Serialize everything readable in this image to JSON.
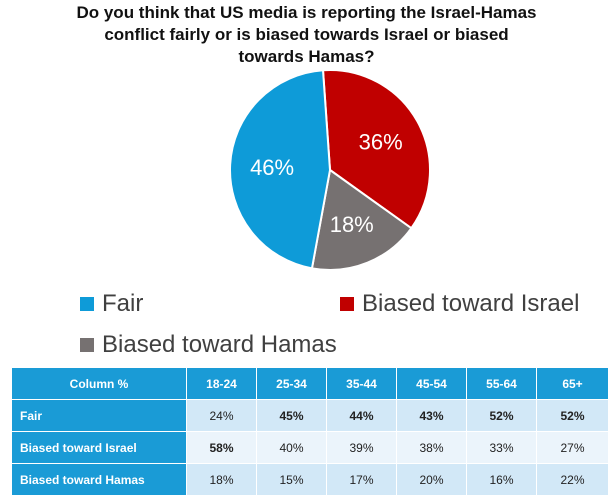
{
  "chart_data": {
    "type": "pie",
    "title_lines": [
      "Do you think that US media is reporting the Israel-Hamas",
      "conflict fairly or is biased towards Israel or biased",
      "towards Hamas?"
    ],
    "slices": [
      {
        "label": "Fair",
        "value": 46,
        "display": "46%",
        "color": "#0e9bd8"
      },
      {
        "label": "Biased toward Israel",
        "value": 36,
        "display": "36%",
        "color": "#c00000"
      },
      {
        "label": "Biased toward Hamas",
        "value": 18,
        "display": "18%",
        "color": "#767171"
      }
    ]
  },
  "table": {
    "header": [
      "Column %",
      "18-24",
      "25-34",
      "35-44",
      "45-54",
      "55-64",
      "65+"
    ],
    "rows": [
      {
        "label": "Fair",
        "values": [
          "24%",
          "45%",
          "44%",
          "43%",
          "52%",
          "52%"
        ],
        "bold": [
          false,
          true,
          true,
          true,
          true,
          true
        ]
      },
      {
        "label": "Biased toward Israel",
        "values": [
          "58%",
          "40%",
          "39%",
          "38%",
          "33%",
          "27%"
        ],
        "bold": [
          true,
          false,
          false,
          false,
          false,
          false
        ]
      },
      {
        "label": "Biased toward Hamas",
        "values": [
          "18%",
          "15%",
          "17%",
          "20%",
          "16%",
          "22%"
        ],
        "bold": [
          false,
          false,
          false,
          false,
          false,
          false
        ]
      }
    ]
  }
}
